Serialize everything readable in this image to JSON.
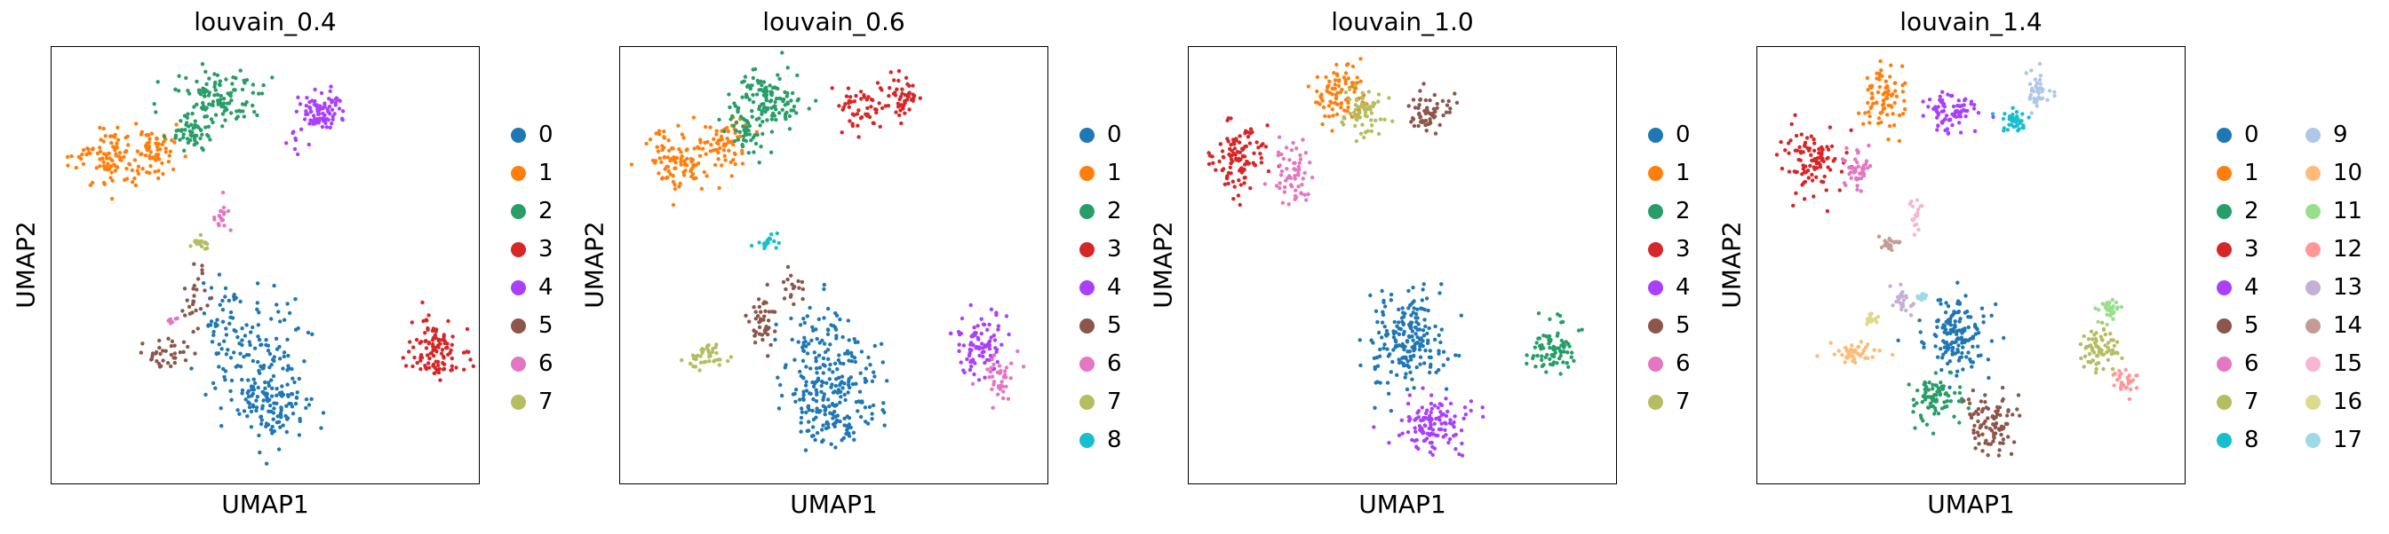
{
  "chart_data": [
    {
      "type": "scatter",
      "title": "louvain_0.4",
      "xlabel": "UMAP1",
      "ylabel": "UMAP2",
      "legend": "right",
      "grid": false,
      "legend_columns": 1,
      "categories": [
        "0",
        "1",
        "2",
        "3",
        "4",
        "5",
        "6",
        "7"
      ],
      "colors": [
        "#1f77b4",
        "#ff7f0e",
        "#279e68",
        "#d62728",
        "#aa40fc",
        "#8c564b",
        "#e377c2",
        "#b5bd61"
      ],
      "clusters": [
        {
          "label": "0",
          "color": "#1f77b4",
          "n": 260,
          "blobs": [
            [
              0.48,
              0.7,
              0.1,
              0.12,
              1
            ],
            [
              0.52,
              0.83,
              0.09,
              0.08,
              0.8
            ],
            [
              0.4,
              0.62,
              0.04,
              0.07,
              0.3
            ]
          ]
        },
        {
          "label": "1",
          "color": "#ff7f0e",
          "n": 160,
          "blobs": [
            [
              0.14,
              0.26,
              0.07,
              0.06,
              1
            ],
            [
              0.25,
              0.24,
              0.05,
              0.05,
              0.5
            ]
          ]
        },
        {
          "label": "2",
          "color": "#279e68",
          "n": 170,
          "blobs": [
            [
              0.39,
              0.12,
              0.09,
              0.06,
              1
            ],
            [
              0.33,
              0.2,
              0.04,
              0.04,
              0.4
            ]
          ]
        },
        {
          "label": "3",
          "color": "#d62728",
          "n": 110,
          "blobs": [
            [
              0.9,
              0.7,
              0.06,
              0.07,
              1
            ]
          ]
        },
        {
          "label": "4",
          "color": "#aa40fc",
          "n": 100,
          "blobs": [
            [
              0.63,
              0.15,
              0.05,
              0.05,
              1
            ],
            [
              0.57,
              0.22,
              0.02,
              0.03,
              0.2
            ]
          ]
        },
        {
          "label": "5",
          "color": "#8c564b",
          "n": 60,
          "blobs": [
            [
              0.27,
              0.7,
              0.05,
              0.03,
              1
            ],
            [
              0.34,
              0.57,
              0.03,
              0.07,
              0.7
            ]
          ]
        },
        {
          "label": "6",
          "color": "#e377c2",
          "n": 25,
          "blobs": [
            [
              0.4,
              0.39,
              0.015,
              0.03,
              1
            ],
            [
              0.28,
              0.62,
              0.015,
              0.015,
              0.6
            ]
          ]
        },
        {
          "label": "7",
          "color": "#b5bd61",
          "n": 20,
          "blobs": [
            [
              0.35,
              0.45,
              0.03,
              0.012,
              1
            ]
          ]
        }
      ]
    },
    {
      "type": "scatter",
      "title": "louvain_0.6",
      "xlabel": "UMAP1",
      "ylabel": "UMAP2",
      "legend": "right",
      "grid": false,
      "legend_columns": 1,
      "categories": [
        "0",
        "1",
        "2",
        "3",
        "4",
        "5",
        "6",
        "7",
        "8"
      ],
      "colors": [
        "#1f77b4",
        "#ff7f0e",
        "#279e68",
        "#d62728",
        "#aa40fc",
        "#8c564b",
        "#e377c2",
        "#b5bd61",
        "#17becf"
      ],
      "clusters": [
        {
          "label": "0",
          "color": "#1f77b4",
          "n": 270,
          "blobs": [
            [
              0.49,
              0.72,
              0.1,
              0.13,
              1
            ],
            [
              0.5,
              0.84,
              0.09,
              0.07,
              0.7
            ]
          ]
        },
        {
          "label": "1",
          "color": "#ff7f0e",
          "n": 160,
          "blobs": [
            [
              0.14,
              0.26,
              0.07,
              0.06,
              1
            ],
            [
              0.25,
              0.22,
              0.05,
              0.05,
              0.5
            ]
          ]
        },
        {
          "label": "2",
          "color": "#279e68",
          "n": 160,
          "blobs": [
            [
              0.35,
              0.12,
              0.08,
              0.06,
              1
            ],
            [
              0.3,
              0.2,
              0.04,
              0.04,
              0.4
            ]
          ]
        },
        {
          "label": "3",
          "color": "#d62728",
          "n": 100,
          "blobs": [
            [
              0.57,
              0.14,
              0.05,
              0.05,
              1
            ],
            [
              0.66,
              0.12,
              0.03,
              0.04,
              0.6
            ]
          ]
        },
        {
          "label": "4",
          "color": "#aa40fc",
          "n": 90,
          "blobs": [
            [
              0.84,
              0.68,
              0.05,
              0.06,
              1
            ]
          ]
        },
        {
          "label": "5",
          "color": "#8c564b",
          "n": 60,
          "blobs": [
            [
              0.33,
              0.63,
              0.03,
              0.07,
              1
            ],
            [
              0.4,
              0.55,
              0.03,
              0.04,
              0.6
            ]
          ]
        },
        {
          "label": "6",
          "color": "#e377c2",
          "n": 40,
          "blobs": [
            [
              0.89,
              0.76,
              0.03,
              0.05,
              1
            ]
          ]
        },
        {
          "label": "7",
          "color": "#b5bd61",
          "n": 40,
          "blobs": [
            [
              0.2,
              0.71,
              0.05,
              0.025,
              1
            ]
          ]
        },
        {
          "label": "8",
          "color": "#17becf",
          "n": 18,
          "blobs": [
            [
              0.34,
              0.45,
              0.025,
              0.015,
              1
            ]
          ]
        }
      ]
    },
    {
      "type": "scatter",
      "title": "louvain_1.0",
      "xlabel": "UMAP1",
      "ylabel": "UMAP2",
      "legend": "right",
      "grid": false,
      "legend_columns": 1,
      "categories": [
        "0",
        "1",
        "2",
        "3",
        "4",
        "5",
        "6",
        "7"
      ],
      "colors": [
        "#1f77b4",
        "#ff7f0e",
        "#279e68",
        "#d62728",
        "#aa40fc",
        "#8c564b",
        "#e377c2",
        "#b5bd61"
      ],
      "clusters": [
        {
          "label": "0",
          "color": "#1f77b4",
          "n": 200,
          "blobs": [
            [
              0.51,
              0.67,
              0.08,
              0.1,
              1
            ]
          ]
        },
        {
          "label": "1",
          "color": "#ff7f0e",
          "n": 90,
          "blobs": [
            [
              0.35,
              0.11,
              0.06,
              0.06,
              1
            ]
          ]
        },
        {
          "label": "2",
          "color": "#279e68",
          "n": 80,
          "blobs": [
            [
              0.85,
              0.69,
              0.05,
              0.06,
              1
            ]
          ]
        },
        {
          "label": "3",
          "color": "#d62728",
          "n": 110,
          "blobs": [
            [
              0.12,
              0.26,
              0.06,
              0.07,
              1
            ]
          ]
        },
        {
          "label": "4",
          "color": "#aa40fc",
          "n": 120,
          "blobs": [
            [
              0.57,
              0.86,
              0.07,
              0.07,
              1
            ]
          ]
        },
        {
          "label": "5",
          "color": "#8c564b",
          "n": 60,
          "blobs": [
            [
              0.56,
              0.15,
              0.05,
              0.04,
              1
            ]
          ]
        },
        {
          "label": "6",
          "color": "#e377c2",
          "n": 60,
          "blobs": [
            [
              0.24,
              0.3,
              0.04,
              0.06,
              1
            ]
          ]
        },
        {
          "label": "7",
          "color": "#b5bd61",
          "n": 60,
          "blobs": [
            [
              0.41,
              0.16,
              0.05,
              0.05,
              1
            ]
          ]
        }
      ]
    },
    {
      "type": "scatter",
      "title": "louvain_1.4",
      "xlabel": "UMAP1",
      "ylabel": "UMAP2",
      "legend": "right",
      "grid": false,
      "legend_columns": 2,
      "categories": [
        "0",
        "1",
        "2",
        "3",
        "4",
        "5",
        "6",
        "7",
        "8",
        "9",
        "10",
        "11",
        "12",
        "13",
        "14",
        "15",
        "16",
        "17"
      ],
      "colors": [
        "#1f77b4",
        "#ff7f0e",
        "#279e68",
        "#d62728",
        "#aa40fc",
        "#8c564b",
        "#e377c2",
        "#b5bd61",
        "#17becf",
        "#aec7e8",
        "#ffbb78",
        "#98df8a",
        "#ff9896",
        "#c5b0d5",
        "#c49c94",
        "#f7b6d2",
        "#dbdb8d",
        "#9edae5"
      ],
      "clusters": [
        {
          "label": "0",
          "color": "#1f77b4",
          "n": 150,
          "blobs": [
            [
              0.47,
              0.66,
              0.07,
              0.08,
              1
            ]
          ]
        },
        {
          "label": "1",
          "color": "#ff7f0e",
          "n": 80,
          "blobs": [
            [
              0.3,
              0.12,
              0.05,
              0.06,
              1
            ]
          ]
        },
        {
          "label": "2",
          "color": "#279e68",
          "n": 80,
          "blobs": [
            [
              0.42,
              0.8,
              0.06,
              0.05,
              1
            ]
          ]
        },
        {
          "label": "3",
          "color": "#d62728",
          "n": 100,
          "blobs": [
            [
              0.13,
              0.26,
              0.06,
              0.07,
              1
            ]
          ]
        },
        {
          "label": "4",
          "color": "#aa40fc",
          "n": 80,
          "blobs": [
            [
              0.45,
              0.15,
              0.06,
              0.04,
              1
            ]
          ]
        },
        {
          "label": "5",
          "color": "#8c564b",
          "n": 90,
          "blobs": [
            [
              0.55,
              0.86,
              0.06,
              0.06,
              1
            ]
          ]
        },
        {
          "label": "6",
          "color": "#e377c2",
          "n": 45,
          "blobs": [
            [
              0.23,
              0.28,
              0.03,
              0.05,
              1
            ]
          ]
        },
        {
          "label": "7",
          "color": "#b5bd61",
          "n": 70,
          "blobs": [
            [
              0.8,
              0.69,
              0.04,
              0.05,
              1
            ]
          ]
        },
        {
          "label": "8",
          "color": "#17becf",
          "n": 35,
          "blobs": [
            [
              0.6,
              0.17,
              0.03,
              0.03,
              1
            ]
          ]
        },
        {
          "label": "9",
          "color": "#aec7e8",
          "n": 40,
          "blobs": [
            [
              0.66,
              0.1,
              0.025,
              0.04,
              1
            ]
          ]
        },
        {
          "label": "10",
          "color": "#ffbb78",
          "n": 45,
          "blobs": [
            [
              0.23,
              0.7,
              0.05,
              0.02,
              1
            ]
          ]
        },
        {
          "label": "11",
          "color": "#98df8a",
          "n": 30,
          "blobs": [
            [
              0.82,
              0.6,
              0.025,
              0.025,
              1
            ]
          ]
        },
        {
          "label": "12",
          "color": "#ff9896",
          "n": 30,
          "blobs": [
            [
              0.86,
              0.76,
              0.025,
              0.025,
              1
            ]
          ]
        },
        {
          "label": "13",
          "color": "#c5b0d5",
          "n": 25,
          "blobs": [
            [
              0.34,
              0.58,
              0.025,
              0.03,
              1
            ]
          ]
        },
        {
          "label": "14",
          "color": "#c49c94",
          "n": 22,
          "blobs": [
            [
              0.31,
              0.45,
              0.025,
              0.015,
              1
            ]
          ]
        },
        {
          "label": "15",
          "color": "#f7b6d2",
          "n": 18,
          "blobs": [
            [
              0.37,
              0.39,
              0.015,
              0.03,
              1
            ]
          ]
        },
        {
          "label": "16",
          "color": "#dbdb8d",
          "n": 15,
          "blobs": [
            [
              0.27,
              0.62,
              0.015,
              0.015,
              1
            ]
          ]
        },
        {
          "label": "17",
          "color": "#9edae5",
          "n": 12,
          "blobs": [
            [
              0.39,
              0.57,
              0.012,
              0.012,
              1
            ]
          ]
        }
      ]
    }
  ]
}
